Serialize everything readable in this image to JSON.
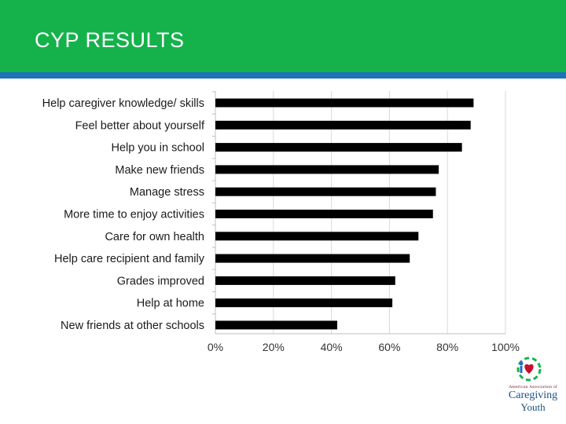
{
  "header": {
    "title": "CYP RESULTS"
  },
  "colors": {
    "header_bg": "#15b24c",
    "stripe": "#1c73b9",
    "bar": "#000000",
    "grid": "#d9d9d9"
  },
  "chart_data": {
    "type": "bar",
    "orientation": "horizontal",
    "categories": [
      "Help caregiver knowledge/ skills",
      "Feel better about yourself",
      "Help you in school",
      "Make new friends",
      "Manage stress",
      "More time to enjoy activities",
      "Care for own health",
      "Help care recipient and family",
      "Grades improved",
      "Help at home",
      "New friends at other schools"
    ],
    "values": [
      89,
      88,
      85,
      77,
      76,
      75,
      70,
      67,
      62,
      61,
      42
    ],
    "xlim": [
      0,
      100
    ],
    "ticks": [
      "0%",
      "20%",
      "40%",
      "60%",
      "80%",
      "100%"
    ],
    "grid": true,
    "title": "",
    "xlabel": "",
    "ylabel": ""
  },
  "logo": {
    "name": "caregiving-youth-logo",
    "small_text": "American Association of",
    "main_text": "Caregiving",
    "sub_text": "Youth"
  }
}
